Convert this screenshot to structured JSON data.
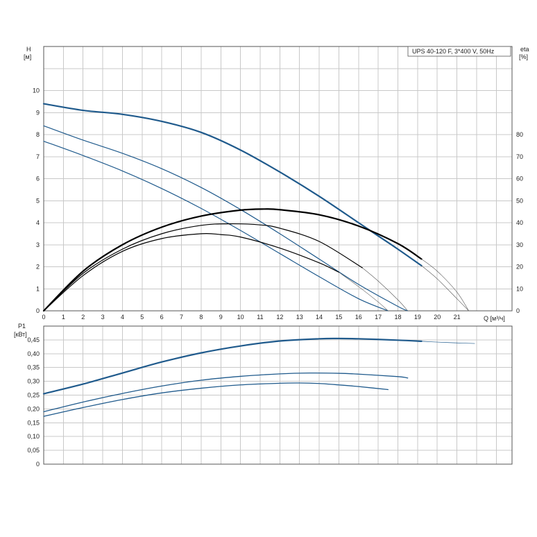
{
  "chart_data": [
    {
      "type": "line",
      "title": "UPS 40-120 F, 3*400 V, 50Hz",
      "xlabel_unit": "Q [м³/ч]",
      "ylabel_left": "H",
      "ylabel_left_unit": "[м]",
      "ylabel_right": "eta",
      "ylabel_right_unit": "[%]",
      "xlim": [
        0,
        23.8
      ],
      "ylim_left": [
        0,
        12
      ],
      "ylim_right": [
        0,
        120
      ],
      "x_ticks": [
        0,
        1,
        2,
        3,
        4,
        5,
        6,
        7,
        8,
        9,
        10,
        11,
        12,
        13,
        14,
        15,
        16,
        17,
        18,
        19,
        20,
        21
      ],
      "y_ticks_left": [
        0,
        1,
        2,
        3,
        4,
        5,
        6,
        7,
        8,
        9,
        10
      ],
      "y_ticks_right": [
        0,
        10,
        20,
        30,
        40,
        50,
        60,
        70,
        80
      ],
      "grid": true,
      "series": [
        {
          "axis": "left",
          "color": "#1f5a8c",
          "width": 2.2,
          "x": [
            0,
            2,
            4,
            6,
            8,
            10,
            12,
            14,
            16,
            17,
            18,
            19.2
          ],
          "y": [
            9.4,
            9.1,
            8.92,
            8.6,
            8.1,
            7.3,
            6.3,
            5.2,
            4.0,
            3.4,
            2.8,
            2.05
          ]
        },
        {
          "axis": "left",
          "color": "#1f5a8c",
          "width": 1.2,
          "x": [
            0,
            2,
            4,
            6,
            8,
            10,
            12,
            14,
            16,
            18,
            18.5
          ],
          "y": [
            8.4,
            7.75,
            7.15,
            6.45,
            5.6,
            4.6,
            3.5,
            2.35,
            1.2,
            0.2,
            0
          ]
        },
        {
          "axis": "left",
          "color": "#1f5a8c",
          "width": 1.2,
          "x": [
            0,
            2,
            4,
            6,
            8,
            10,
            12,
            14,
            16,
            17.5
          ],
          "y": [
            7.7,
            7.05,
            6.35,
            5.55,
            4.65,
            3.65,
            2.6,
            1.55,
            0.55,
            0
          ]
        },
        {
          "axis": "right",
          "color": "#000000",
          "width": 2.2,
          "x": [
            0,
            2,
            4,
            6,
            8,
            10,
            11.2,
            12,
            14,
            16,
            18,
            19.2
          ],
          "y": [
            0,
            18,
            30,
            38,
            43,
            45.7,
            46.2,
            45.9,
            43.6,
            38.5,
            30.5,
            23.5
          ]
        },
        {
          "axis": "right",
          "color": "#000000",
          "width": 1.2,
          "x": [
            0,
            2,
            4,
            6,
            8,
            9.5,
            11,
            12,
            14,
            16.2
          ],
          "y": [
            0,
            17,
            28,
            35,
            38.8,
            39.5,
            39,
            37.5,
            31.5,
            19.5
          ]
        },
        {
          "axis": "right",
          "color": "#000000",
          "width": 1.2,
          "x": [
            0,
            2,
            4,
            6,
            8,
            9,
            10,
            12,
            14,
            15
          ],
          "y": [
            0,
            16,
            27,
            32.8,
            35,
            34.6,
            33.5,
            28.5,
            21.8,
            17.5
          ]
        },
        {
          "axis": "right",
          "color": "#555555",
          "width": 0.6,
          "x": [
            19.2,
            20,
            21,
            21.6
          ],
          "y": [
            23.5,
            18,
            8.5,
            0
          ]
        },
        {
          "axis": "right",
          "color": "#555555",
          "width": 0.6,
          "x": [
            16.2,
            17,
            18,
            18.5
          ],
          "y": [
            19.5,
            13.5,
            5,
            0
          ]
        },
        {
          "axis": "right",
          "color": "#555555",
          "width": 0.6,
          "x": [
            15,
            16,
            17,
            17.5
          ],
          "y": [
            17.5,
            11,
            4,
            0
          ]
        },
        {
          "axis": "left",
          "color": "#555555",
          "width": 0.6,
          "x": [
            19.2,
            20,
            21,
            21.6
          ],
          "y": [
            2.05,
            1.45,
            0.55,
            0
          ]
        }
      ]
    },
    {
      "type": "line",
      "ylabel": "P1",
      "ylabel_unit": "[кВт]",
      "xlim": [
        0,
        23.8
      ],
      "ylim": [
        0,
        0.5
      ],
      "y_ticks": [
        "0",
        "0,05",
        "0,10",
        "0,15",
        "0,20",
        "0,25",
        "0,30",
        "0,35",
        "0,40",
        "0,45"
      ],
      "grid": true,
      "series": [
        {
          "color": "#1f5a8c",
          "width": 2.2,
          "x": [
            0,
            2,
            4,
            6,
            8,
            10,
            12,
            14,
            15,
            16,
            18,
            19.2
          ],
          "y": [
            0.255,
            0.29,
            0.33,
            0.37,
            0.403,
            0.428,
            0.446,
            0.454,
            0.455,
            0.454,
            0.449,
            0.445
          ]
        },
        {
          "color": "#1f5a8c",
          "width": 1.3,
          "x": [
            0,
            2,
            4,
            6,
            8,
            10,
            12,
            13.5,
            15,
            16,
            18,
            18.5
          ],
          "y": [
            0.19,
            0.225,
            0.256,
            0.283,
            0.304,
            0.318,
            0.327,
            0.33,
            0.329,
            0.326,
            0.317,
            0.312
          ]
        },
        {
          "color": "#1f5a8c",
          "width": 1.3,
          "x": [
            0,
            2,
            4,
            6,
            8,
            10,
            12,
            13,
            14,
            15,
            16,
            17.5
          ],
          "y": [
            0.173,
            0.205,
            0.234,
            0.258,
            0.275,
            0.287,
            0.293,
            0.294,
            0.292,
            0.287,
            0.281,
            0.27
          ]
        },
        {
          "color": "#1f5a8c",
          "width": 0.7,
          "x": [
            19.2,
            20,
            21,
            21.9
          ],
          "y": [
            0.445,
            0.442,
            0.439,
            0.437
          ]
        }
      ]
    }
  ]
}
